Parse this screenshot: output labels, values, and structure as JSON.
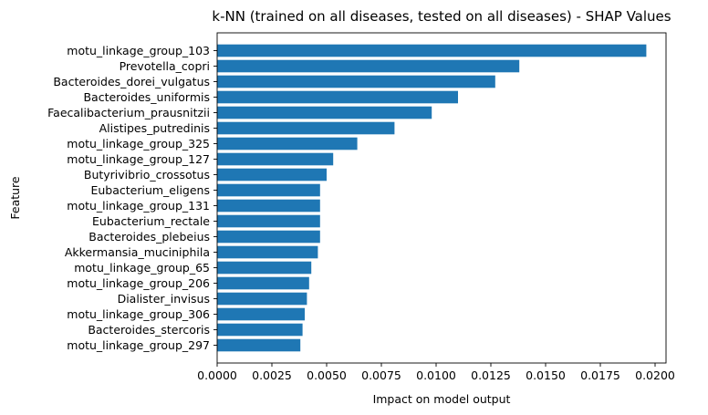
{
  "chart_data": {
    "type": "bar",
    "orientation": "horizontal",
    "title": "k-NN (trained on all diseases, tested on all diseases) -  SHAP Values",
    "xlabel": "Impact on model output",
    "ylabel": "Feature",
    "xlim": [
      0,
      0.0205
    ],
    "xticks": [
      "0.0000",
      "0.0025",
      "0.0050",
      "0.0075",
      "0.0100",
      "0.0125",
      "0.0150",
      "0.0175",
      "0.0200"
    ],
    "grid": false,
    "bar_color": "#1f77b4",
    "categories": [
      "motu_linkage_group_103",
      "Prevotella_copri",
      "Bacteroides_dorei_vulgatus",
      "Bacteroides_uniformis",
      "Faecalibacterium_prausnitzii",
      "Alistipes_putredinis",
      "motu_linkage_group_325",
      "motu_linkage_group_127",
      "Butyrivibrio_crossotus",
      "Eubacterium_eligens",
      "motu_linkage_group_131",
      "Eubacterium_rectale",
      "Bacteroides_plebeius",
      "Akkermansia_muciniphila",
      "motu_linkage_group_65",
      "motu_linkage_group_206",
      "Dialister_invisus",
      "motu_linkage_group_306",
      "Bacteroides_stercoris",
      "motu_linkage_group_297"
    ],
    "values": [
      0.0196,
      0.0138,
      0.0127,
      0.011,
      0.0098,
      0.0081,
      0.0064,
      0.0053,
      0.005,
      0.0047,
      0.0047,
      0.0047,
      0.0047,
      0.0046,
      0.0043,
      0.0042,
      0.0041,
      0.004,
      0.0039,
      0.0038
    ]
  }
}
